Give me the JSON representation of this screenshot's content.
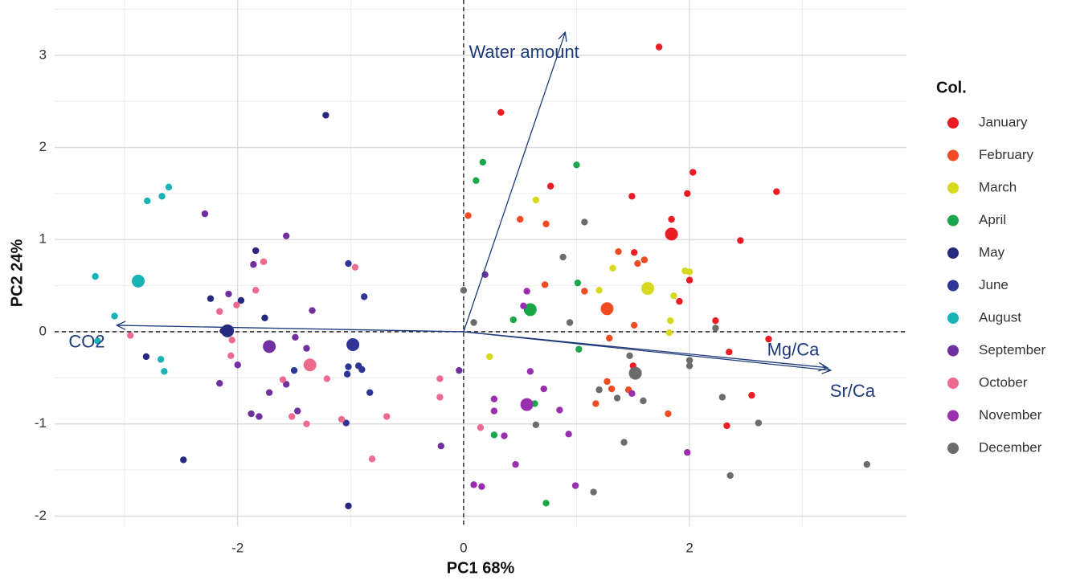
{
  "chart_data": {
    "type": "scatter",
    "x_label": "PC1 68%",
    "y_label": "PC2 24%",
    "legend_title": "Col.",
    "xlim": [
      -3.62,
      3.92
    ],
    "ylim": [
      -2.11,
      3.6
    ],
    "xticks": [
      -2,
      0,
      2
    ],
    "yticks": [
      -2,
      -1,
      0,
      1,
      2,
      3
    ],
    "grid": true,
    "minor_grid": true,
    "zero_lines": true,
    "legend_position": "right",
    "arrow_color": "#1f3a7a",
    "arrows": [
      {
        "label": "Water amount",
        "x": 0.9,
        "y": 3.25
      },
      {
        "label": "CO2",
        "x": -3.07,
        "y": 0.07
      },
      {
        "label": "Mg/Ca",
        "x": 3.22,
        "y": -0.39
      },
      {
        "label": "Sr/Ca",
        "x": 3.25,
        "y": -0.42
      }
    ],
    "series": [
      {
        "name": "January",
        "color": "#ec1c24",
        "x": [
          1.73,
          0.33,
          2.03,
          0.77,
          1.49,
          1.98,
          2.77,
          1.84,
          2.45,
          1.51,
          2.0,
          1.91,
          2.23,
          2.7,
          2.35,
          1.5,
          2.55,
          2.33
        ],
        "y": [
          3.09,
          2.38,
          1.73,
          1.58,
          1.47,
          1.5,
          1.52,
          1.22,
          0.99,
          0.86,
          0.56,
          0.33,
          0.12,
          -0.08,
          -0.22,
          -0.37,
          -0.69,
          -1.02
        ],
        "centroid": {
          "x": 1.84,
          "y": 1.06
        }
      },
      {
        "name": "February",
        "color": "#f04b22",
        "x": [
          0.04,
          0.5,
          0.73,
          1.37,
          1.54,
          1.6,
          0.72,
          1.07,
          1.51,
          1.29,
          1.27,
          1.31,
          1.46,
          1.81,
          1.17
        ],
        "y": [
          1.26,
          1.22,
          1.17,
          0.87,
          0.74,
          0.78,
          0.51,
          0.44,
          0.07,
          -0.07,
          -0.54,
          -0.62,
          -0.63,
          -0.89,
          -0.78
        ],
        "centroid": {
          "x": 1.27,
          "y": 0.25
        }
      },
      {
        "name": "March",
        "color": "#d6d91c",
        "x": [
          0.64,
          1.32,
          1.2,
          1.96,
          2.0,
          1.86,
          1.83,
          1.82,
          0.23
        ],
        "y": [
          1.43,
          0.69,
          0.45,
          0.66,
          0.65,
          0.39,
          0.12,
          -0.01,
          -0.27
        ],
        "centroid": {
          "x": 1.63,
          "y": 0.47
        }
      },
      {
        "name": "April",
        "color": "#1aa64b",
        "x": [
          0.17,
          0.11,
          1.0,
          1.01,
          0.44,
          1.02,
          0.63,
          0.27,
          0.73
        ],
        "y": [
          1.84,
          1.64,
          1.81,
          0.53,
          0.13,
          -0.19,
          -0.78,
          -1.12,
          -1.86
        ],
        "centroid": {
          "x": 0.59,
          "y": 0.24
        }
      },
      {
        "name": "May",
        "color": "#27287f",
        "x": [
          -1.22,
          -2.24,
          -1.97,
          -1.84,
          -1.76,
          -2.81,
          -2.13,
          -2.48,
          -1.02
        ],
        "y": [
          2.35,
          0.36,
          0.34,
          0.88,
          0.15,
          -0.27,
          0.01,
          -1.39,
          -1.89
        ],
        "centroid": {
          "x": -2.09,
          "y": 0.01
        }
      },
      {
        "name": "June",
        "color": "#2e3596",
        "x": [
          -1.02,
          -0.88,
          -1.03,
          -1.04,
          -0.83,
          -0.93,
          -0.9,
          -1.5,
          -1.02
        ],
        "y": [
          0.74,
          0.38,
          -0.46,
          -0.99,
          -0.66,
          -0.37,
          -0.41,
          -0.42,
          -0.38
        ],
        "centroid": {
          "x": -0.98,
          "y": -0.14
        }
      },
      {
        "name": "August",
        "color": "#17b3b5",
        "x": [
          -3.26,
          -3.09,
          -2.8,
          -2.67,
          -2.61,
          -2.68,
          -2.65,
          -3.24
        ],
        "y": [
          0.6,
          0.17,
          1.42,
          1.47,
          1.57,
          -0.3,
          -0.43,
          -0.1
        ],
        "centroid": {
          "x": -2.88,
          "y": 0.55
        }
      },
      {
        "name": "September",
        "color": "#7030a0",
        "x": [
          -2.29,
          -1.57,
          -1.86,
          -1.34,
          -1.49,
          -2.08,
          -2.0,
          -1.72,
          -1.57,
          -1.39,
          -1.47,
          -1.88,
          -1.81,
          -2.16,
          0.19,
          -0.04,
          -0.2
        ],
        "y": [
          1.28,
          1.04,
          0.73,
          0.23,
          -0.06,
          0.41,
          -0.36,
          -0.66,
          -0.57,
          -0.18,
          -0.86,
          -0.89,
          -0.92,
          -0.56,
          0.62,
          -0.42,
          -1.24
        ],
        "centroid": {
          "x": -1.72,
          "y": -0.16
        }
      },
      {
        "name": "October",
        "color": "#ee6a8e",
        "x": [
          -1.77,
          -0.96,
          -1.84,
          -2.01,
          -2.16,
          -2.05,
          -2.95,
          -2.06,
          -1.21,
          -1.6,
          -1.52,
          -1.39,
          -1.08,
          -0.68,
          -0.81,
          -0.21,
          -0.21,
          0.15
        ],
        "y": [
          0.76,
          0.7,
          0.45,
          0.29,
          0.22,
          -0.09,
          -0.04,
          -0.26,
          -0.51,
          -0.52,
          -0.92,
          -1.0,
          -0.95,
          -0.92,
          -1.38,
          -0.51,
          -0.71,
          -1.04
        ],
        "centroid": {
          "x": -1.36,
          "y": -0.36
        }
      },
      {
        "name": "November",
        "color": "#9a2fae",
        "x": [
          0.56,
          0.53,
          0.27,
          0.27,
          0.36,
          0.46,
          0.09,
          0.16,
          0.59,
          0.71,
          0.85,
          0.93,
          0.99,
          1.49,
          1.98
        ],
        "y": [
          0.44,
          0.28,
          -0.73,
          -0.86,
          -1.13,
          -1.44,
          -1.66,
          -1.68,
          -0.43,
          -0.62,
          -0.85,
          -1.11,
          -1.67,
          -0.67,
          -1.31
        ],
        "centroid": {
          "x": 0.56,
          "y": -0.79
        }
      },
      {
        "name": "December",
        "color": "#6b6d6b",
        "x": [
          0.0,
          0.09,
          1.07,
          0.88,
          0.94,
          1.47,
          2.0,
          2.0,
          2.23,
          1.2,
          1.36,
          1.59,
          2.29,
          2.61,
          0.64,
          1.42,
          1.15,
          2.36,
          3.57
        ],
        "y": [
          0.45,
          0.1,
          1.19,
          0.81,
          0.1,
          -0.26,
          -0.31,
          -0.37,
          0.04,
          -0.63,
          -0.72,
          -0.75,
          -0.71,
          -0.99,
          -1.01,
          -1.2,
          -1.74,
          -1.56,
          -1.44
        ],
        "centroid": {
          "x": 1.52,
          "y": -0.45
        }
      }
    ]
  }
}
